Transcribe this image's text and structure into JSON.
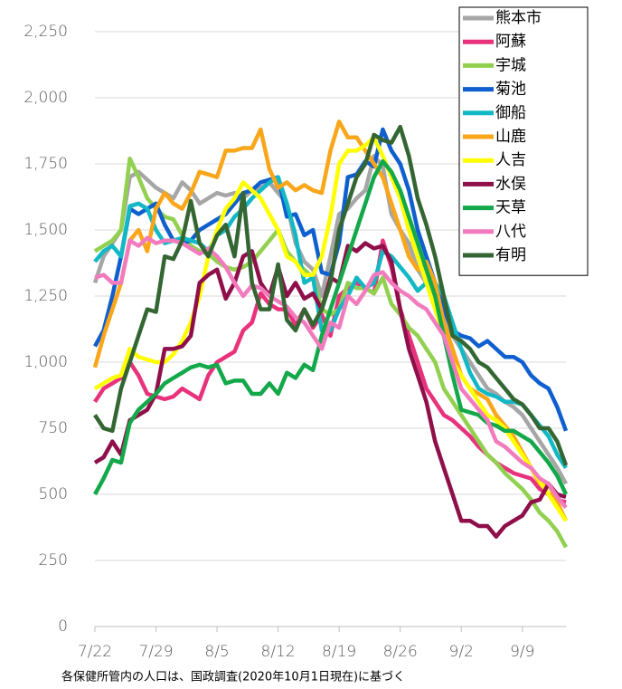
{
  "chart_data": {
    "type": "line",
    "categories": [
      "7/22",
      null,
      null,
      null,
      null,
      null,
      null,
      "7/29",
      null,
      null,
      null,
      null,
      null,
      null,
      "8/5",
      null,
      null,
      null,
      null,
      null,
      null,
      "8/12",
      null,
      null,
      null,
      null,
      null,
      null,
      "8/19",
      null,
      null,
      null,
      null,
      null,
      null,
      "8/26",
      null,
      null,
      null,
      null,
      null,
      null,
      "9/2",
      null,
      null,
      null,
      null,
      null,
      null,
      "9/9",
      null,
      null,
      null,
      null,
      null
    ],
    "ylim": [
      0,
      2250
    ],
    "yticks": [
      0,
      250,
      500,
      750,
      {
        "value": 1000,
        "label": "1,000"
      },
      {
        "value": 1250,
        "label": "1,250"
      },
      {
        "value": 1500,
        "label": "1,500"
      },
      {
        "value": 1750,
        "label": "1,750"
      },
      {
        "value": 2000,
        "label": "2,000"
      },
      {
        "value": 2250,
        "label": "2,250"
      }
    ],
    "grid": true,
    "legend": "top-right",
    "footnote": "各保健所管内の人口は、国政調査(2020年10月1日現在)に基づく",
    "series": [
      {
        "name": "熊本市",
        "color": "#a6a6a6",
        "values": [
          1300,
          1400,
          1450,
          1500,
          1700,
          1720,
          1690,
          1660,
          1640,
          1620,
          1680,
          1650,
          1600,
          1620,
          1640,
          1630,
          1640,
          1620,
          1650,
          1660,
          1680,
          1640,
          1600,
          1450,
          1380,
          1350,
          1250,
          1400,
          1560,
          1580,
          1620,
          1650,
          1780,
          1740,
          1560,
          1500,
          1450,
          1350,
          1300,
          1250,
          1180,
          1100,
          1050,
          1000,
          950,
          900,
          880,
          850,
          830,
          800,
          750,
          700,
          650,
          600,
          540
        ]
      },
      {
        "name": "阿蘇",
        "color": "#e8327c",
        "values": [
          850,
          900,
          920,
          940,
          1000,
          950,
          880,
          870,
          860,
          870,
          900,
          880,
          860,
          950,
          1000,
          1020,
          1040,
          1120,
          1150,
          1260,
          1220,
          1200,
          1200,
          1140,
          1200,
          1130,
          1180,
          1100,
          1250,
          1280,
          1300,
          1280,
          1260,
          1460,
          1360,
          1200,
          1100,
          1000,
          900,
          850,
          800,
          780,
          750,
          720,
          680,
          650,
          620,
          600,
          580,
          570,
          560,
          520,
          500,
          480,
          470
        ]
      },
      {
        "name": "宇城",
        "color": "#92d050",
        "values": [
          1420,
          1440,
          1460,
          1500,
          1770,
          1700,
          1620,
          1580,
          1550,
          1540,
          1480,
          1440,
          1420,
          1410,
          1380,
          1360,
          1350,
          1360,
          1380,
          1420,
          1460,
          1500,
          1420,
          1380,
          1350,
          1320,
          1200,
          1180,
          1200,
          1300,
          1280,
          1280,
          1260,
          1320,
          1220,
          1180,
          1130,
          1100,
          1050,
          1000,
          900,
          850,
          800,
          750,
          700,
          650,
          620,
          580,
          550,
          520,
          480,
          430,
          400,
          360,
          300
        ]
      },
      {
        "name": "菊池",
        "color": "#0f5fcf",
        "values": [
          1060,
          1120,
          1250,
          1400,
          1580,
          1560,
          1580,
          1600,
          1520,
          1460,
          1450,
          1460,
          1500,
          1520,
          1540,
          1560,
          1600,
          1640,
          1650,
          1680,
          1690,
          1700,
          1550,
          1560,
          1480,
          1500,
          1340,
          1330,
          1450,
          1700,
          1710,
          1760,
          1740,
          1880,
          1800,
          1750,
          1650,
          1500,
          1400,
          1300,
          1200,
          1120,
          1100,
          1090,
          1060,
          1080,
          1050,
          1020,
          1020,
          1000,
          950,
          920,
          900,
          830,
          740
        ]
      },
      {
        "name": "御船",
        "color": "#12b8c4",
        "values": [
          1380,
          1420,
          1440,
          1400,
          1590,
          1600,
          1580,
          1500,
          1450,
          1460,
          1470,
          1460,
          1450,
          1420,
          1480,
          1500,
          1550,
          1580,
          1620,
          1650,
          1680,
          1700,
          1600,
          1480,
          1300,
          1320,
          1120,
          1120,
          1200,
          1250,
          1320,
          1280,
          1300,
          1420,
          1400,
          1360,
          1320,
          1270,
          1300,
          1300,
          1250,
          1150,
          1050,
          960,
          900,
          880,
          870,
          850,
          850,
          840,
          800,
          760,
          720,
          650,
          600
        ]
      },
      {
        "name": "山鹿",
        "color": "#f9a61a",
        "values": [
          980,
          1100,
          1200,
          1300,
          1460,
          1500,
          1420,
          1580,
          1640,
          1600,
          1580,
          1640,
          1720,
          1710,
          1700,
          1800,
          1800,
          1810,
          1810,
          1880,
          1730,
          1660,
          1680,
          1650,
          1670,
          1650,
          1640,
          1800,
          1910,
          1850,
          1850,
          1800,
          1750,
          1700,
          1600,
          1500,
          1400,
          1350,
          1380,
          1300,
          1150,
          1050,
          950,
          900,
          880,
          860,
          800,
          760,
          720,
          660,
          600,
          540,
          540,
          470,
          400
        ]
      },
      {
        "name": "人吉",
        "color": "#ffff00",
        "values": [
          900,
          920,
          940,
          950,
          1050,
          1020,
          1010,
          1000,
          1000,
          1030,
          1080,
          1150,
          1250,
          1400,
          1500,
          1580,
          1620,
          1680,
          1650,
          1620,
          1560,
          1500,
          1400,
          1380,
          1330,
          1330,
          1400,
          1550,
          1750,
          1800,
          1800,
          1820,
          1850,
          1780,
          1700,
          1620,
          1500,
          1400,
          1300,
          1200,
          1100,
          1000,
          950,
          900,
          850,
          800,
          780,
          750,
          700,
          650,
          600,
          550,
          500,
          450,
          400
        ]
      },
      {
        "name": "水俣",
        "color": "#8e0f4a",
        "values": [
          620,
          640,
          700,
          650,
          780,
          800,
          820,
          880,
          1050,
          1050,
          1060,
          1100,
          1300,
          1330,
          1350,
          1240,
          1300,
          1400,
          1420,
          1300,
          1250,
          1360,
          1250,
          1300,
          1240,
          1260,
          1200,
          1320,
          1300,
          1440,
          1420,
          1450,
          1430,
          1440,
          1380,
          1200,
          1050,
          950,
          850,
          700,
          600,
          500,
          400,
          400,
          380,
          380,
          340,
          380,
          400,
          420,
          470,
          480,
          540,
          500,
          490
        ]
      },
      {
        "name": "天草",
        "color": "#13a84a",
        "values": [
          500,
          560,
          630,
          620,
          770,
          820,
          850,
          880,
          920,
          940,
          960,
          980,
          990,
          980,
          990,
          920,
          930,
          930,
          880,
          880,
          920,
          880,
          960,
          940,
          990,
          970,
          1100,
          1200,
          1300,
          1400,
          1500,
          1600,
          1700,
          1760,
          1720,
          1650,
          1550,
          1450,
          1350,
          1250,
          1100,
          950,
          820,
          810,
          800,
          770,
          760,
          740,
          740,
          720,
          700,
          660,
          620,
          570,
          500
        ]
      },
      {
        "name": "八代",
        "color": "#f27bbd",
        "values": [
          1320,
          1330,
          1300,
          1300,
          1460,
          1440,
          1470,
          1450,
          1460,
          1460,
          1450,
          1430,
          1410,
          1430,
          1400,
          1360,
          1300,
          1250,
          1290,
          1280,
          1250,
          1230,
          1210,
          1170,
          1150,
          1100,
          1050,
          1150,
          1130,
          1250,
          1220,
          1270,
          1330,
          1340,
          1300,
          1270,
          1250,
          1220,
          1200,
          1150,
          1100,
          1000,
          900,
          860,
          820,
          780,
          700,
          680,
          650,
          620,
          600,
          560,
          540,
          490,
          450
        ]
      },
      {
        "name": "有明",
        "color": "#336633",
        "values": [
          800,
          750,
          740,
          900,
          1000,
          1100,
          1200,
          1190,
          1400,
          1390,
          1460,
          1610,
          1450,
          1400,
          1480,
          1520,
          1400,
          1640,
          1300,
          1200,
          1200,
          1370,
          1160,
          1120,
          1200,
          1140,
          1200,
          1300,
          1500,
          1600,
          1700,
          1750,
          1860,
          1840,
          1830,
          1890,
          1780,
          1620,
          1520,
          1400,
          1250,
          1100,
          1080,
          1050,
          1000,
          980,
          940,
          900,
          860,
          840,
          800,
          750,
          750,
          700,
          610
        ]
      }
    ]
  }
}
